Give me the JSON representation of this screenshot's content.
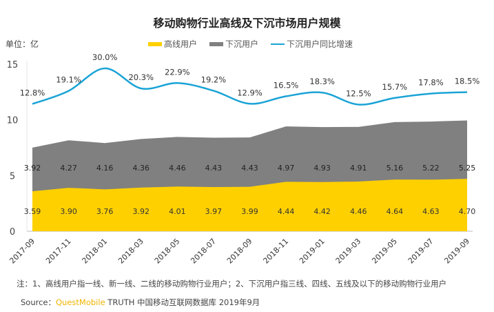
{
  "chart_data": {
    "type": "area",
    "title": "移动购物行业高线及下沉市场用户规模",
    "unit_label": "单位：亿",
    "categories": [
      "2017-09",
      "2017-11",
      "2018-01",
      "2018-03",
      "2018-05",
      "2018-07",
      "2018-09",
      "2018-11",
      "2019-01",
      "2019-03",
      "2019-05",
      "2019-07",
      "2019-09"
    ],
    "series": [
      {
        "name": "高线用户",
        "kind": "stacked-area",
        "color": "#FFD000",
        "values": [
          3.59,
          3.9,
          3.76,
          3.92,
          4.01,
          3.97,
          3.99,
          4.44,
          4.42,
          4.46,
          4.64,
          4.63,
          4.7
        ],
        "labels": [
          "3.59",
          "3.90",
          "3.76",
          "3.92",
          "4.01",
          "3.97",
          "3.99",
          "4.44",
          "4.42",
          "4.46",
          "4.64",
          "4.63",
          "4.70"
        ]
      },
      {
        "name": "下沉用户",
        "kind": "stacked-area",
        "color": "#808080",
        "values": [
          3.92,
          4.27,
          4.16,
          4.36,
          4.46,
          4.43,
          4.43,
          4.97,
          4.93,
          4.91,
          5.16,
          5.22,
          5.25
        ],
        "labels": [
          "3.92",
          "4.27",
          "4.16",
          "4.36",
          "4.46",
          "4.43",
          "4.43",
          "4.97",
          "4.93",
          "4.91",
          "5.16",
          "5.22",
          "5.25"
        ]
      },
      {
        "name": "下沉用户同比增速",
        "kind": "line",
        "axis": "secondary",
        "color": "#1AA3D6",
        "values": [
          12.8,
          19.1,
          30.0,
          20.3,
          22.9,
          19.2,
          12.9,
          16.5,
          18.3,
          12.5,
          15.7,
          17.8,
          18.5
        ],
        "labels": [
          "12.8%",
          "19.1%",
          "30.0%",
          "20.3%",
          "22.9%",
          "19.2%",
          "12.9%",
          "16.5%",
          "18.3%",
          "12.5%",
          "15.7%",
          "17.8%",
          "18.5%"
        ]
      }
    ],
    "ylim": [
      0,
      15
    ],
    "yticks": [
      "0",
      "5",
      "10",
      "15"
    ],
    "grid": false,
    "legend": "top-center"
  },
  "footer": {
    "note": "注：1、高线用户指一线、新一线、二线的移动购物行业用户；2、下沉用户指三线、四线、五线及以下的移动购物行业用户",
    "source_prefix": "Source：",
    "source_brand": "QuestMobile",
    "source_suffix": " TRUTH 中国移动互联网数据库 2019年9月"
  }
}
